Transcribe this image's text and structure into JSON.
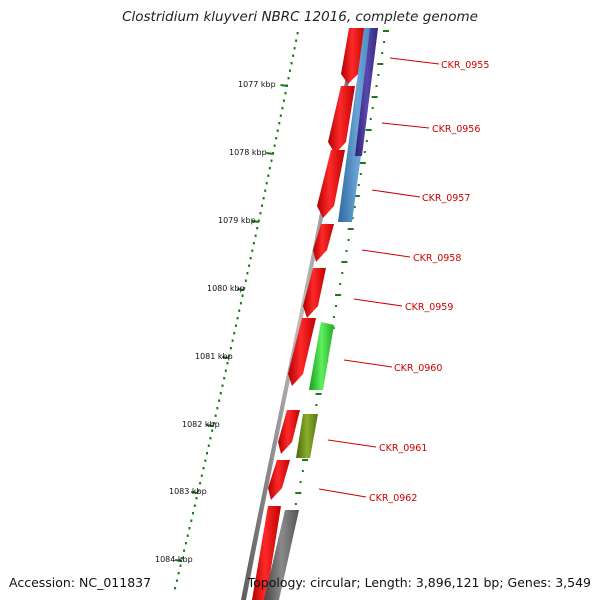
{
  "title": "Clostridium kluyveri NBRC 12016, complete genome",
  "footer": {
    "accession": "Accession: NC_011837",
    "stats": "Topology: circular; Length: 3,896,121 bp; Genes: 3,549"
  },
  "ruler": {
    "labels": [
      "1077 kbp",
      "1078 kbp",
      "1079 kbp",
      "1080 kbp",
      "1081 kbp",
      "1082 kbp",
      "1083 kbp",
      "1084 kbp"
    ]
  },
  "colors": {
    "forward_gene": "#ee0000",
    "label": "#cc0000",
    "backbone": "#888888",
    "ruler": "#1a7a1a",
    "blue_feature": "#4a88c0",
    "navy_feature": "#4b3a9a",
    "green_feature": "#2ecc2e",
    "olive_feature": "#6a8a1a",
    "grey_feature": "#6a6a6a"
  },
  "genes": [
    "CKR_0955",
    "CKR_0956",
    "CKR_0957",
    "CKR_0958",
    "CKR_0959",
    "CKR_0960",
    "CKR_0961",
    "CKR_0962"
  ]
}
